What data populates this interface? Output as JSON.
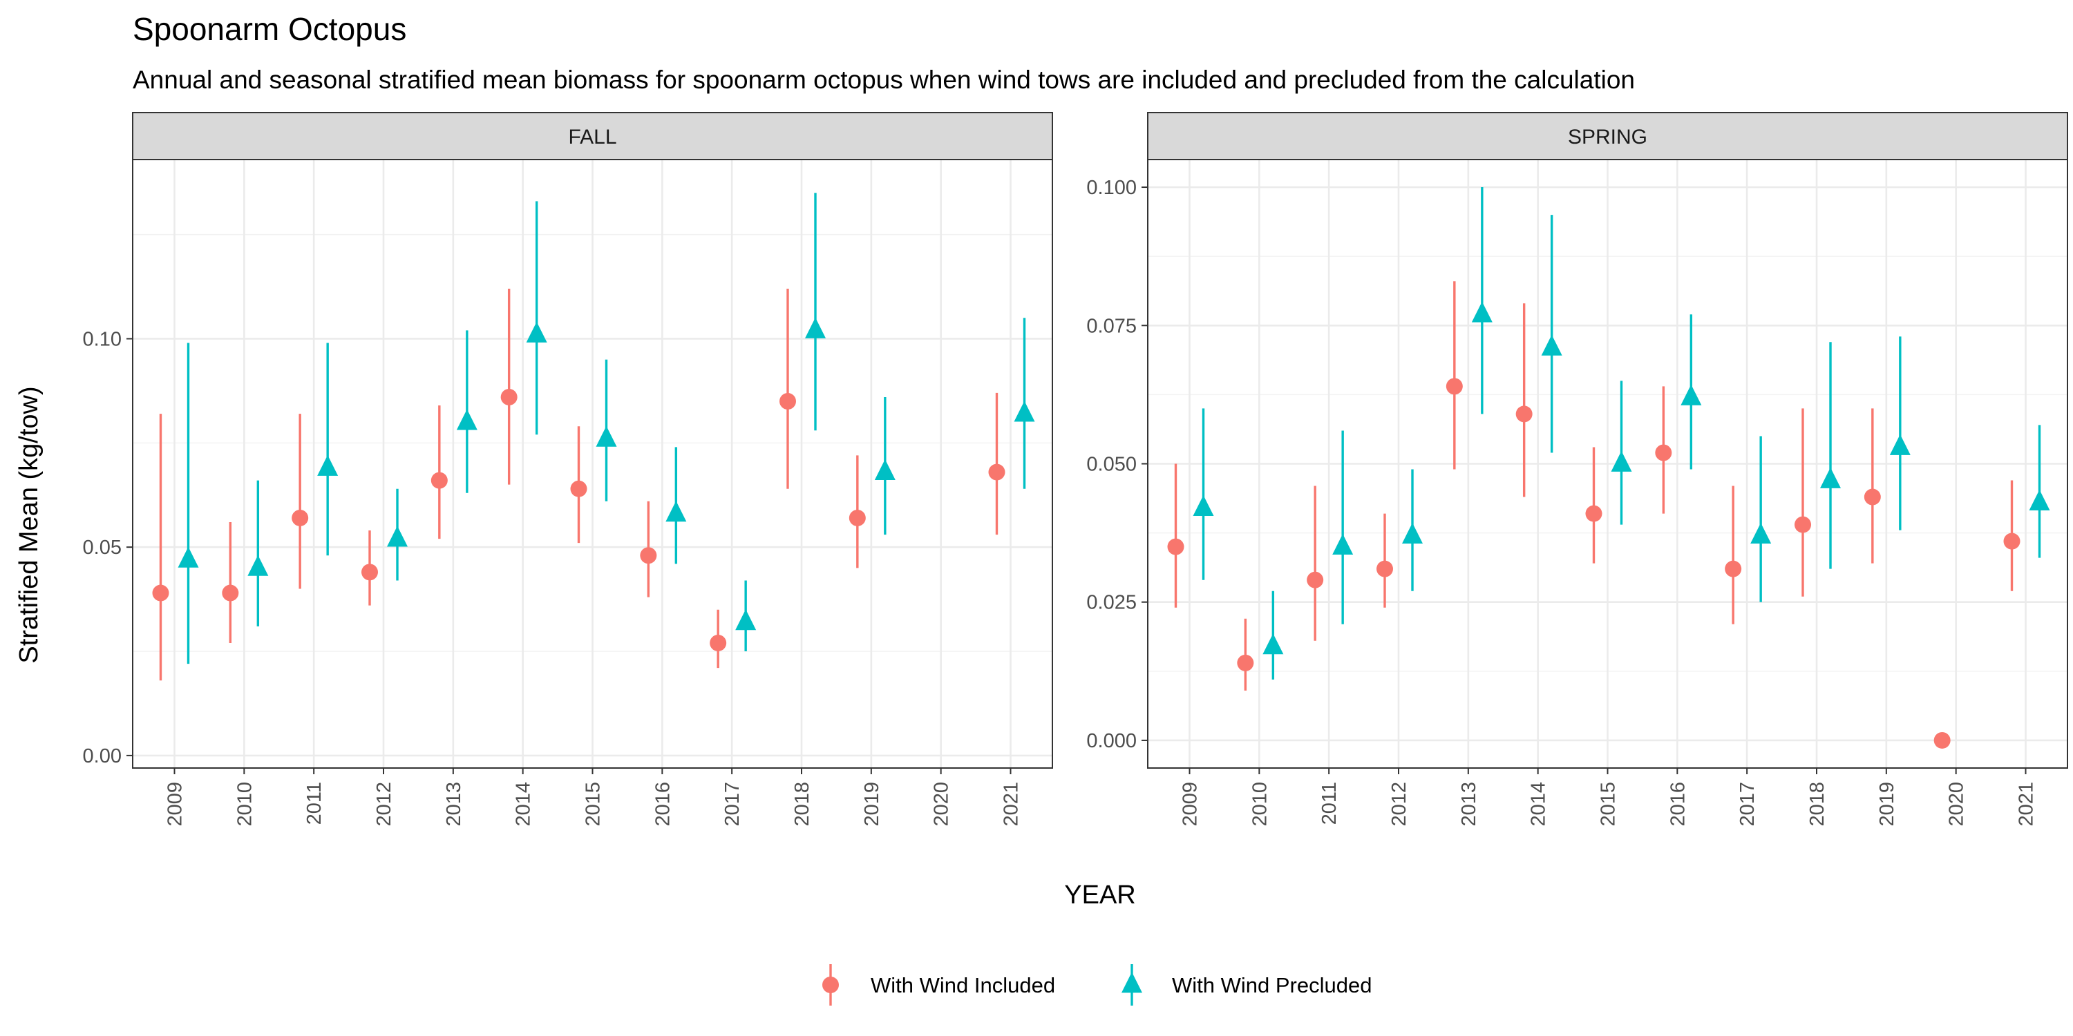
{
  "chart_data": {
    "type": "scatter",
    "title": "Spoonarm Octopus",
    "subtitle": "Annual and seasonal stratified mean biomass for spoonarm octopus when wind tows are included and precluded from the calculation",
    "xlabel": "YEAR",
    "ylabel": "Stratified Mean (kg/tow)",
    "legend_position": "bottom",
    "grid": true,
    "x_categories": [
      "2009",
      "2010",
      "2011",
      "2012",
      "2013",
      "2014",
      "2015",
      "2016",
      "2017",
      "2018",
      "2019",
      "2020",
      "2021"
    ],
    "series_styles": [
      {
        "name": "With Wind Included",
        "color": "#F8766D",
        "shape": "circle"
      },
      {
        "name": "With Wind Precluded",
        "color": "#00BFC4",
        "shape": "triangle"
      }
    ],
    "panels": [
      {
        "label": "FALL",
        "ylim": [
          -0.003,
          0.143
        ],
        "yticks": [
          0.0,
          0.05,
          0.1
        ],
        "ytick_labels": [
          "0.00",
          "0.05",
          "0.10"
        ],
        "series": [
          {
            "name": "With Wind Included",
            "points": [
              {
                "x": "2009",
                "y": 0.039,
                "lo": 0.018,
                "hi": 0.082
              },
              {
                "x": "2010",
                "y": 0.039,
                "lo": 0.027,
                "hi": 0.056
              },
              {
                "x": "2011",
                "y": 0.057,
                "lo": 0.04,
                "hi": 0.082
              },
              {
                "x": "2012",
                "y": 0.044,
                "lo": 0.036,
                "hi": 0.054
              },
              {
                "x": "2013",
                "y": 0.066,
                "lo": 0.052,
                "hi": 0.084
              },
              {
                "x": "2014",
                "y": 0.086,
                "lo": 0.065,
                "hi": 0.112
              },
              {
                "x": "2015",
                "y": 0.064,
                "lo": 0.051,
                "hi": 0.079
              },
              {
                "x": "2016",
                "y": 0.048,
                "lo": 0.038,
                "hi": 0.061
              },
              {
                "x": "2017",
                "y": 0.027,
                "lo": 0.021,
                "hi": 0.035
              },
              {
                "x": "2018",
                "y": 0.085,
                "lo": 0.064,
                "hi": 0.112
              },
              {
                "x": "2019",
                "y": 0.057,
                "lo": 0.045,
                "hi": 0.072
              },
              {
                "x": "2021",
                "y": 0.068,
                "lo": 0.053,
                "hi": 0.087
              }
            ]
          },
          {
            "name": "With Wind Precluded",
            "points": [
              {
                "x": "2009",
                "y": 0.047,
                "lo": 0.022,
                "hi": 0.099
              },
              {
                "x": "2010",
                "y": 0.045,
                "lo": 0.031,
                "hi": 0.066
              },
              {
                "x": "2011",
                "y": 0.069,
                "lo": 0.048,
                "hi": 0.099
              },
              {
                "x": "2012",
                "y": 0.052,
                "lo": 0.042,
                "hi": 0.064
              },
              {
                "x": "2013",
                "y": 0.08,
                "lo": 0.063,
                "hi": 0.102
              },
              {
                "x": "2014",
                "y": 0.101,
                "lo": 0.077,
                "hi": 0.133
              },
              {
                "x": "2015",
                "y": 0.076,
                "lo": 0.061,
                "hi": 0.095
              },
              {
                "x": "2016",
                "y": 0.058,
                "lo": 0.046,
                "hi": 0.074
              },
              {
                "x": "2017",
                "y": 0.032,
                "lo": 0.025,
                "hi": 0.042
              },
              {
                "x": "2018",
                "y": 0.102,
                "lo": 0.078,
                "hi": 0.135
              },
              {
                "x": "2019",
                "y": 0.068,
                "lo": 0.053,
                "hi": 0.086
              },
              {
                "x": "2021",
                "y": 0.082,
                "lo": 0.064,
                "hi": 0.105
              }
            ]
          }
        ]
      },
      {
        "label": "SPRING",
        "ylim": [
          -0.005,
          0.105
        ],
        "yticks": [
          0.0,
          0.025,
          0.05,
          0.075,
          0.1
        ],
        "ytick_labels": [
          "0.000",
          "0.025",
          "0.050",
          "0.075",
          "0.100"
        ],
        "series": [
          {
            "name": "With Wind Included",
            "points": [
              {
                "x": "2009",
                "y": 0.035,
                "lo": 0.024,
                "hi": 0.05
              },
              {
                "x": "2010",
                "y": 0.014,
                "lo": 0.009,
                "hi": 0.022
              },
              {
                "x": "2011",
                "y": 0.029,
                "lo": 0.018,
                "hi": 0.046
              },
              {
                "x": "2012",
                "y": 0.031,
                "lo": 0.024,
                "hi": 0.041
              },
              {
                "x": "2013",
                "y": 0.064,
                "lo": 0.049,
                "hi": 0.083
              },
              {
                "x": "2014",
                "y": 0.059,
                "lo": 0.044,
                "hi": 0.079
              },
              {
                "x": "2015",
                "y": 0.041,
                "lo": 0.032,
                "hi": 0.053
              },
              {
                "x": "2016",
                "y": 0.052,
                "lo": 0.041,
                "hi": 0.064
              },
              {
                "x": "2017",
                "y": 0.031,
                "lo": 0.021,
                "hi": 0.046
              },
              {
                "x": "2018",
                "y": 0.039,
                "lo": 0.026,
                "hi": 0.06
              },
              {
                "x": "2019",
                "y": 0.044,
                "lo": 0.032,
                "hi": 0.06
              },
              {
                "x": "2020",
                "y": 0.0,
                "lo": 0.0,
                "hi": 0.0
              },
              {
                "x": "2021",
                "y": 0.036,
                "lo": 0.027,
                "hi": 0.047
              }
            ]
          },
          {
            "name": "With Wind Precluded",
            "points": [
              {
                "x": "2009",
                "y": 0.042,
                "lo": 0.029,
                "hi": 0.06
              },
              {
                "x": "2010",
                "y": 0.017,
                "lo": 0.011,
                "hi": 0.027
              },
              {
                "x": "2011",
                "y": 0.035,
                "lo": 0.021,
                "hi": 0.056
              },
              {
                "x": "2012",
                "y": 0.037,
                "lo": 0.027,
                "hi": 0.049
              },
              {
                "x": "2013",
                "y": 0.077,
                "lo": 0.059,
                "hi": 0.1
              },
              {
                "x": "2014",
                "y": 0.071,
                "lo": 0.052,
                "hi": 0.095
              },
              {
                "x": "2015",
                "y": 0.05,
                "lo": 0.039,
                "hi": 0.065
              },
              {
                "x": "2016",
                "y": 0.062,
                "lo": 0.049,
                "hi": 0.077
              },
              {
                "x": "2017",
                "y": 0.037,
                "lo": 0.025,
                "hi": 0.055
              },
              {
                "x": "2018",
                "y": 0.047,
                "lo": 0.031,
                "hi": 0.072
              },
              {
                "x": "2019",
                "y": 0.053,
                "lo": 0.038,
                "hi": 0.073
              },
              {
                "x": "2021",
                "y": 0.043,
                "lo": 0.033,
                "hi": 0.057
              }
            ]
          }
        ]
      }
    ]
  }
}
